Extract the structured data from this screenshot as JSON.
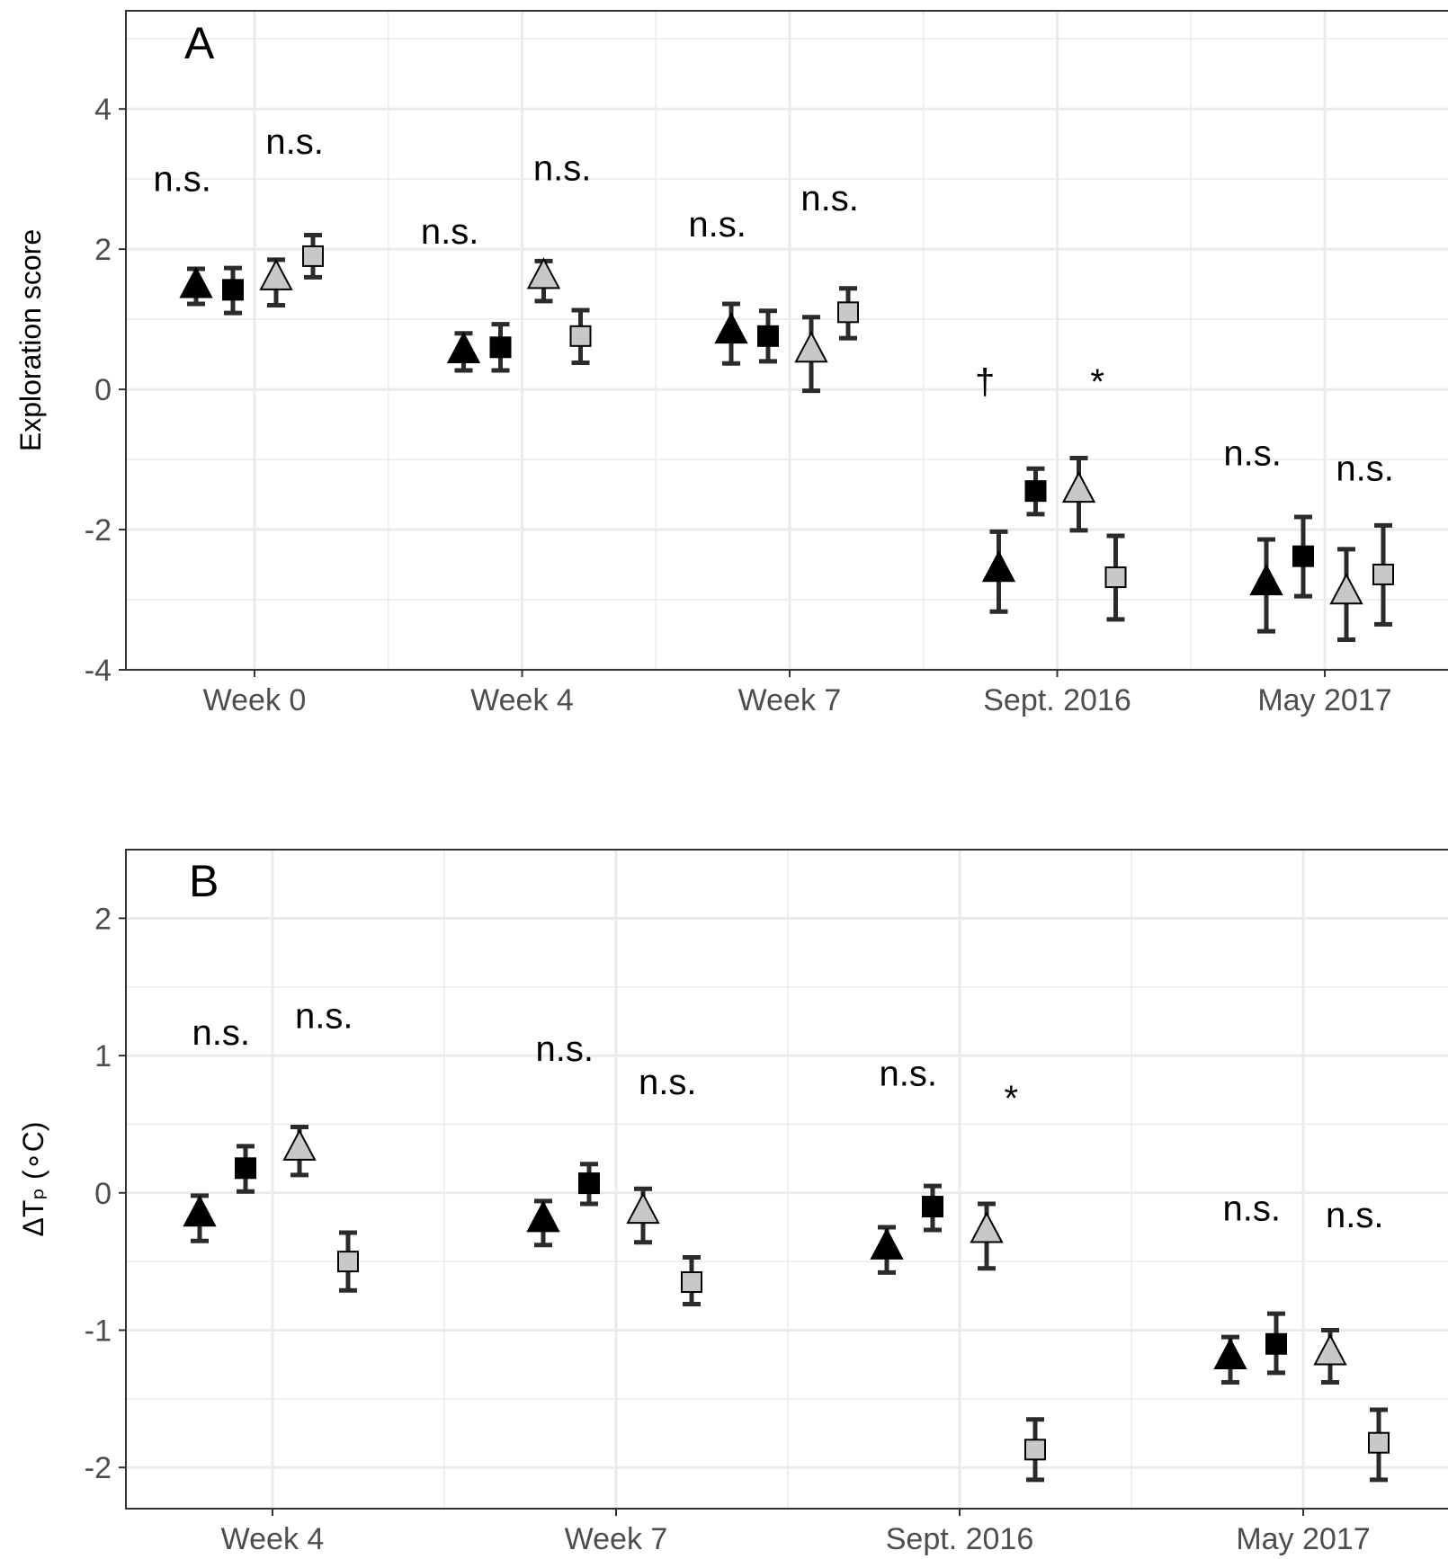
{
  "chart_data": [
    {
      "type": "scatter",
      "panel_label": "A",
      "ylabel": "Exploration score",
      "xlabel": "",
      "ylim": [
        -4,
        5.4
      ],
      "yticks": [
        -4,
        -2,
        0,
        2,
        4
      ],
      "categories": [
        "Week 0",
        "Week 4",
        "Week 7",
        "Sept. 2016",
        "May 2017"
      ],
      "grid": true,
      "series": [
        {
          "marker": "triangle",
          "fill": "#000000",
          "values": [
            1.47,
            0.54,
            0.82,
            -2.58,
            -2.77
          ],
          "ci_low": [
            1.22,
            0.27,
            0.37,
            -3.17,
            -3.45
          ],
          "ci_high": [
            1.72,
            0.8,
            1.22,
            -2.03,
            -2.14
          ]
        },
        {
          "marker": "square",
          "fill": "#000000",
          "values": [
            1.42,
            0.6,
            0.76,
            -1.45,
            -2.38
          ],
          "ci_low": [
            1.09,
            0.27,
            0.4,
            -1.78,
            -2.95
          ],
          "ci_high": [
            1.73,
            0.93,
            1.12,
            -1.13,
            -1.82
          ]
        },
        {
          "marker": "triangle",
          "fill": "#c8c8c8",
          "values": [
            1.58,
            1.6,
            0.55,
            -1.45,
            -2.9
          ],
          "ci_low": [
            1.2,
            1.26,
            -0.02,
            -2.01,
            -3.57
          ],
          "ci_high": [
            1.85,
            1.83,
            1.03,
            -0.98,
            -2.28
          ]
        },
        {
          "marker": "square",
          "fill": "#c8c8c8",
          "values": [
            1.9,
            0.76,
            1.1,
            -2.68,
            -2.64
          ],
          "ci_low": [
            1.6,
            0.38,
            0.73,
            -3.28,
            -3.35
          ],
          "ci_high": [
            2.2,
            1.13,
            1.44,
            -2.09,
            -1.94
          ]
        }
      ],
      "annotations": [
        {
          "text": "n.s.",
          "x_offset": -0.27,
          "category": 0,
          "y": 2.83
        },
        {
          "text": "n.s.",
          "x_offset": 0.15,
          "category": 0,
          "y": 3.36
        },
        {
          "text": "n.s.",
          "x_offset": -0.27,
          "category": 1,
          "y": 2.08
        },
        {
          "text": "n.s.",
          "x_offset": 0.15,
          "category": 1,
          "y": 2.98
        },
        {
          "text": "n.s.",
          "x_offset": -0.27,
          "category": 2,
          "y": 2.18
        },
        {
          "text": "n.s.",
          "x_offset": 0.15,
          "category": 2,
          "y": 2.55
        },
        {
          "text": "†",
          "x_offset": -0.27,
          "category": 3,
          "y": -0.06
        },
        {
          "text": "*",
          "x_offset": 0.15,
          "category": 3,
          "y": -0.06
        },
        {
          "text": "n.s.",
          "x_offset": -0.27,
          "category": 4,
          "y": -1.08
        },
        {
          "text": "n.s.",
          "x_offset": 0.15,
          "category": 4,
          "y": -1.3
        }
      ]
    },
    {
      "type": "scatter",
      "panel_label": "B",
      "ylabel": "ΔTₚ (∘C)",
      "xlabel": "",
      "ylim": [
        -2.3,
        2.5
      ],
      "yticks": [
        -2,
        -1,
        0,
        1,
        2
      ],
      "categories": [
        "Week 4",
        "Week 7",
        "Sept. 2016",
        "May 2017"
      ],
      "grid": true,
      "series": [
        {
          "marker": "triangle",
          "fill": "#000000",
          "values": [
            -0.16,
            -0.2,
            -0.4,
            -1.2
          ],
          "ci_low": [
            -0.35,
            -0.38,
            -0.58,
            -1.38
          ],
          "ci_high": [
            -0.02,
            -0.06,
            -0.25,
            -1.05
          ]
        },
        {
          "marker": "square",
          "fill": "#000000",
          "values": [
            0.18,
            0.07,
            -0.1,
            -1.1
          ],
          "ci_low": [
            0.01,
            -0.08,
            -0.27,
            -1.31
          ],
          "ci_high": [
            0.34,
            0.21,
            0.05,
            -0.88
          ]
        },
        {
          "marker": "triangle",
          "fill": "#c8c8c8",
          "values": [
            0.32,
            -0.14,
            -0.28,
            -1.17
          ],
          "ci_low": [
            0.13,
            -0.36,
            -0.55,
            -1.38
          ],
          "ci_high": [
            0.48,
            0.03,
            -0.08,
            -1.0
          ]
        },
        {
          "marker": "square",
          "fill": "#c8c8c8",
          "values": [
            -0.5,
            -0.65,
            -1.87,
            -1.82
          ],
          "ci_low": [
            -0.71,
            -0.81,
            -2.09,
            -2.09
          ],
          "ci_high": [
            -0.29,
            -0.47,
            -1.65,
            -1.58
          ]
        }
      ],
      "annotations": [
        {
          "text": "n.s.",
          "x_offset": -0.15,
          "category": 0,
          "y": 1.08
        },
        {
          "text": "n.s.",
          "x_offset": 0.15,
          "category": 0,
          "y": 1.2
        },
        {
          "text": "n.s.",
          "x_offset": -0.15,
          "category": 1,
          "y": 0.96
        },
        {
          "text": "n.s.",
          "x_offset": 0.15,
          "category": 1,
          "y": 0.72
        },
        {
          "text": "n.s.",
          "x_offset": -0.15,
          "category": 2,
          "y": 0.78
        },
        {
          "text": "*",
          "x_offset": 0.15,
          "category": 2,
          "y": 0.6
        },
        {
          "text": "n.s.",
          "x_offset": -0.15,
          "category": 3,
          "y": -0.2
        },
        {
          "text": "n.s.",
          "x_offset": 0.15,
          "category": 3,
          "y": -0.25
        }
      ]
    }
  ]
}
